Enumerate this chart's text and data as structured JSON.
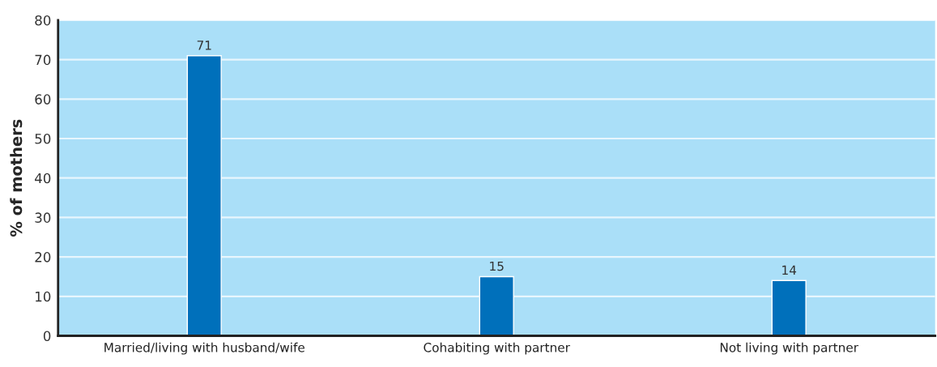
{
  "chart_data": {
    "type": "bar",
    "ylabel": "% of mothers",
    "categories": [
      "Married/living with husband/wife",
      "Cohabiting with partner",
      "Not living with partner"
    ],
    "values": [
      71,
      15,
      14
    ],
    "color": "#0070bb",
    "ylim": [
      0,
      80
    ],
    "yticks": [
      0,
      10,
      20,
      30,
      40,
      50,
      60,
      70,
      80
    ],
    "grid": "y",
    "data_labels": true,
    "legend": false
  }
}
